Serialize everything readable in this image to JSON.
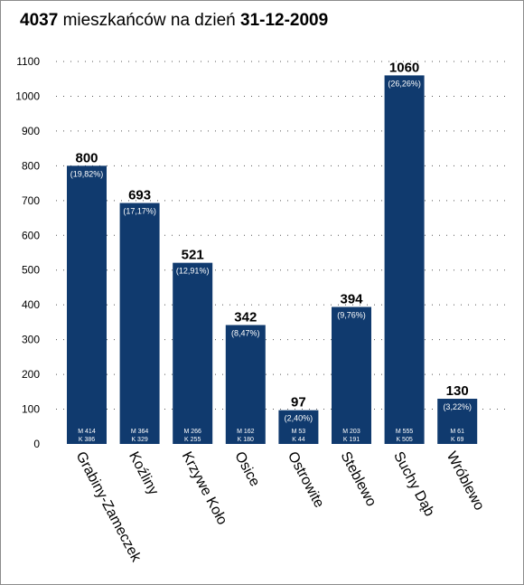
{
  "title": {
    "total": "4037",
    "middle": "mieszkańców na dzień",
    "date": "31-12-2009"
  },
  "chart_data": {
    "type": "bar",
    "title": "4037 mieszkańców na dzień 31-12-2009",
    "xlabel": "",
    "ylabel": "",
    "ylim": [
      0,
      1100
    ],
    "yticks": [
      0,
      100,
      200,
      300,
      400,
      500,
      600,
      700,
      800,
      900,
      1000,
      1100
    ],
    "grid": true,
    "bar_color": "#103a6e",
    "categories": [
      "Grabiny-Zameczek",
      "Koźliny",
      "Krzywe Koło",
      "Osice",
      "Ostrowite",
      "Steblewo",
      "Suchy Dąb",
      "Wróblewo"
    ],
    "values": [
      800,
      693,
      521,
      342,
      97,
      394,
      1060,
      130
    ],
    "percent_labels": [
      "(19,82%)",
      "(17,17%)",
      "(12,91%)",
      "(8,47%)",
      "(2,40%)",
      "(9,76%)",
      "(26,26%)",
      "(3,22%)"
    ],
    "male_labels": [
      "M 414",
      "M 364",
      "M 266",
      "M 162",
      "M 53",
      "M 203",
      "M 555",
      "M 61"
    ],
    "female_labels": [
      "K 386",
      "K 329",
      "K 255",
      "K 180",
      "K 44",
      "K 191",
      "K 505",
      "K 69"
    ]
  }
}
